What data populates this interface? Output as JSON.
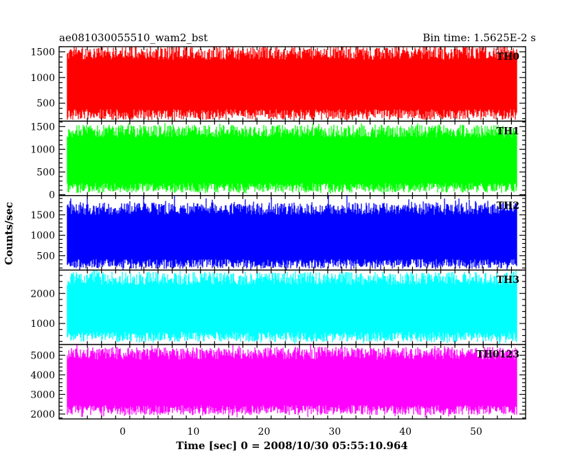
{
  "header": {
    "left_title": "ae081030055510_wam2_bst",
    "right_title": "Bin time: 1.5625E-2 s"
  },
  "chart_data": {
    "type": "line",
    "title": "ae081030055510_wam2_bst",
    "subtitle": "Bin time: 1.5625E-2 s",
    "xlabel": "Time [sec] 0 = 2008/10/30 05:55:10.964",
    "ylabel": "Counts/sec",
    "xlim": [
      -9,
      57
    ],
    "x_ticks": [
      0,
      10,
      20,
      30,
      40,
      50
    ],
    "x_range_of_data": [
      -7.8,
      55.7
    ],
    "bin_time_s": 0.015625,
    "grid": false,
    "panels": [
      {
        "name": "TH0",
        "color": "#ff0000",
        "ylim": [
          150,
          1600
        ],
        "y_ticks": [
          500,
          1000,
          1500
        ],
        "typical_low": 280,
        "typical_high": 1480,
        "mean": 780,
        "peak_max": 1600,
        "trough_min": 150
      },
      {
        "name": "TH1",
        "color": "#00ff00",
        "ylim": [
          -20,
          1620
        ],
        "y_ticks": [
          0,
          500,
          1000,
          1500
        ],
        "typical_low": 150,
        "typical_high": 1400,
        "mean": 750,
        "peak_max": 1600,
        "trough_min": 20
      },
      {
        "name": "TH2",
        "color": "#0000ff",
        "ylim": [
          150,
          1970
        ],
        "y_ticks": [
          500,
          1000,
          1500
        ],
        "typical_low": 300,
        "typical_high": 1650,
        "mean": 900,
        "peak_max": 1970,
        "trough_min": 150
      },
      {
        "name": "TH3",
        "color": "#00ffff",
        "ylim": [
          300,
          2780
        ],
        "y_ticks": [
          1000,
          2000
        ],
        "typical_low": 550,
        "typical_high": 2500,
        "mean": 1450,
        "peak_max": 2780,
        "trough_min": 300
      },
      {
        "name": "TH0123",
        "color": "#ff00ff",
        "ylim": [
          1750,
          5550
        ],
        "y_ticks": [
          2000,
          3000,
          4000,
          5000
        ],
        "typical_low": 2200,
        "typical_high": 5100,
        "mean": 3600,
        "peak_max": 5550,
        "trough_min": 1800
      }
    ]
  }
}
